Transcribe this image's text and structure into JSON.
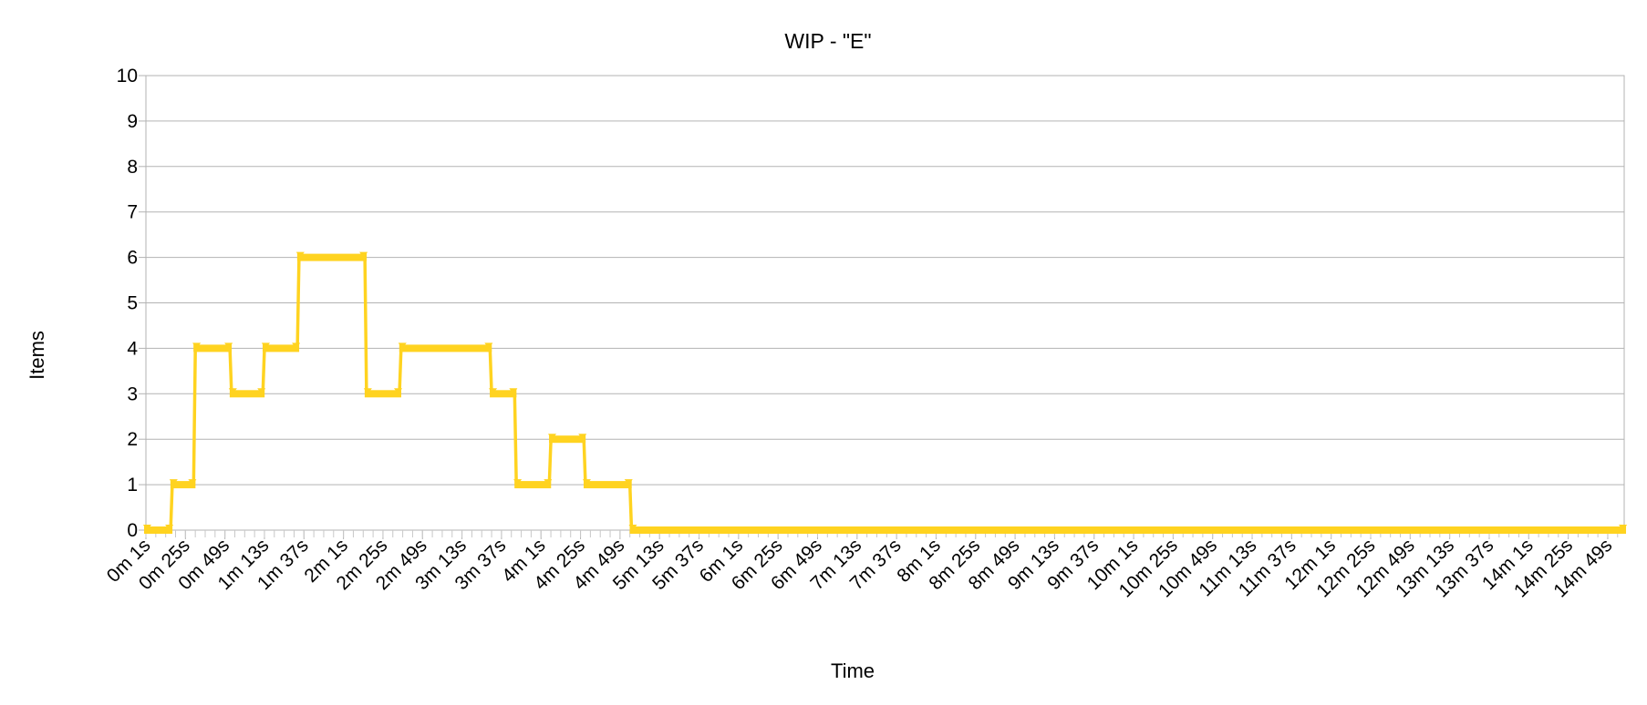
{
  "chart_data": {
    "type": "line",
    "title": "WIP - \"E\"",
    "xlabel": "Time",
    "ylabel": "Items",
    "ylim": [
      0,
      10
    ],
    "y_ticks": [
      0,
      1,
      2,
      3,
      4,
      5,
      6,
      7,
      8,
      9,
      10
    ],
    "grid": true,
    "legend": "none",
    "x_unit": "seconds",
    "x_range_seconds": [
      1,
      899
    ],
    "x_tick_labels": [
      "0m 1s",
      "0m 25s",
      "0m 49s",
      "1m 13s",
      "1m 37s",
      "2m 1s",
      "2m 25s",
      "2m 49s",
      "3m 13s",
      "3m 37s",
      "4m 1s",
      "4m 25s",
      "4m 49s",
      "5m 13s",
      "5m 37s",
      "6m 1s",
      "6m 25s",
      "6m 49s",
      "7m 13s",
      "7m 37s",
      "8m 1s",
      "8m 25s",
      "8m 49s",
      "9m 13s",
      "9m 37s",
      "10m 1s",
      "10m 25s",
      "10m 49s",
      "11m 13s",
      "11m 37s",
      "12m 1s",
      "12m 25s",
      "12m 49s",
      "13m 13s",
      "13m 37s",
      "14m 1s",
      "14m 25s",
      "14m 49s"
    ],
    "series": [
      {
        "color": "#ffd320",
        "segments": [
          {
            "x": [
              1,
              16
            ],
            "y": 0
          },
          {
            "x": [
              17,
              30
            ],
            "y": 1
          },
          {
            "x": [
              31,
              52
            ],
            "y": 4
          },
          {
            "x": [
              53,
              72
            ],
            "y": 3
          },
          {
            "x": [
              73,
              93
            ],
            "y": 4
          },
          {
            "x": [
              94,
              134
            ],
            "y": 6
          },
          {
            "x": [
              135,
              155
            ],
            "y": 3
          },
          {
            "x": [
              156,
              210
            ],
            "y": 4
          },
          {
            "x": [
              211,
              225
            ],
            "y": 3
          },
          {
            "x": [
              226,
              246
            ],
            "y": 1
          },
          {
            "x": [
              247,
              267
            ],
            "y": 2
          },
          {
            "x": [
              268,
              295
            ],
            "y": 1
          },
          {
            "x": [
              296,
              899
            ],
            "y": 0
          }
        ]
      }
    ]
  }
}
